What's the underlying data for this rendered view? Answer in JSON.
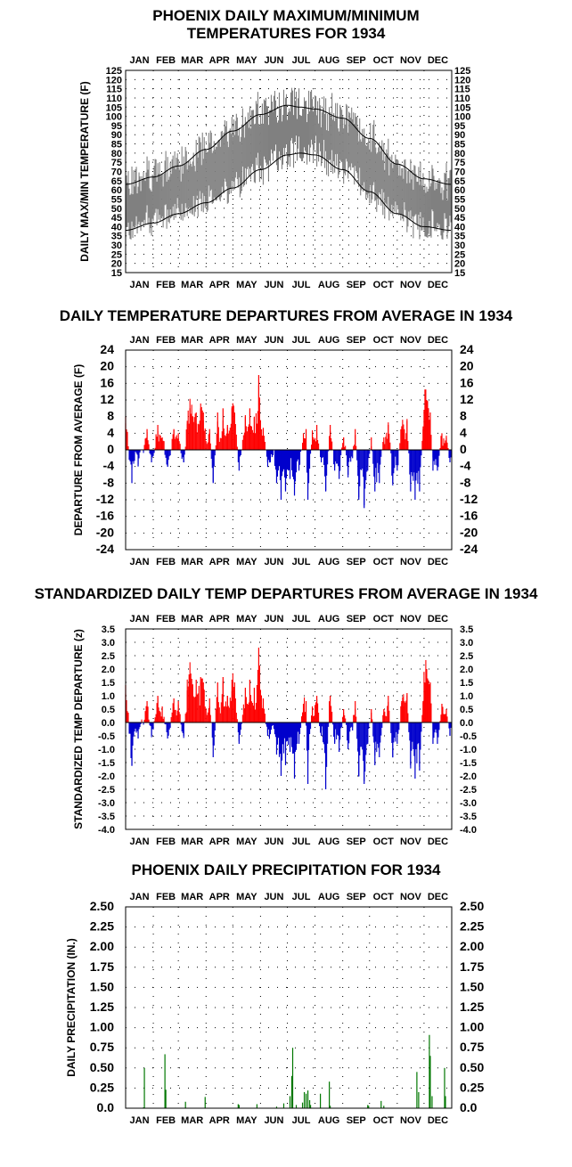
{
  "months": [
    "JAN",
    "FEB",
    "MAR",
    "APR",
    "MAY",
    "JUN",
    "JUL",
    "AUG",
    "SEP",
    "OCT",
    "NOV",
    "DEC"
  ],
  "colors": {
    "positive": "#ff0000",
    "negative": "#0000cc",
    "range": "#808080",
    "precip": "#007700",
    "frame": "#000000"
  },
  "chart_data": [
    {
      "type": "area",
      "title_lines": [
        "PHOENIX DAILY MAXIMUM/MINIMUM",
        "TEMPERATURES FOR 1934"
      ],
      "ylabel": "DAILY MAX/MIN TEMPERATURE (F)",
      "ylim": [
        15,
        125
      ],
      "yticks": [
        "15",
        "20",
        "25",
        "30",
        "35",
        "40",
        "45",
        "50",
        "55",
        "60",
        "65",
        "70",
        "75",
        "80",
        "85",
        "90",
        "95",
        "100",
        "105",
        "110",
        "115",
        "120",
        "125"
      ],
      "grid": "dotted",
      "series": [],
      "normal_high_anchors": {
        "day": [
          1,
          32,
          60,
          91,
          121,
          152,
          182,
          196,
          213,
          244,
          274,
          305,
          335,
          365
        ],
        "value": [
          63,
          67,
          73,
          82,
          92,
          101,
          106,
          105,
          104,
          99,
          88,
          74,
          66,
          63
        ]
      },
      "normal_low_anchors": {
        "day": [
          1,
          32,
          60,
          91,
          121,
          152,
          182,
          196,
          213,
          244,
          274,
          305,
          335,
          365
        ],
        "value": [
          38,
          42,
          47,
          53,
          61,
          71,
          79,
          80,
          79,
          71,
          59,
          47,
          40,
          38
        ]
      }
    },
    {
      "type": "bar",
      "title_lines": [
        "DAILY TEMPERATURE DEPARTURES FROM AVERAGE IN 1934"
      ],
      "ylabel": "DEPARTURE FROM AVERAGE (F)",
      "ylim": [
        -24,
        24
      ],
      "yticks": [
        "-24",
        "-20",
        "-16",
        "-12",
        "-8",
        "-4",
        "0",
        "4",
        "8",
        "12",
        "16",
        "20",
        "24"
      ],
      "grid": "dotted",
      "spikes": {
        "day": [
          1,
          8,
          15,
          25,
          30,
          37,
          42,
          48,
          55,
          60,
          66,
          70,
          73,
          76,
          80,
          85,
          88,
          95,
          99,
          104,
          110,
          115,
          120,
          123,
          128,
          135,
          140,
          145,
          150,
          155,
          160,
          163,
          170,
          175,
          180,
          185,
          190,
          195,
          200,
          203,
          205,
          210,
          215,
          220,
          225,
          230,
          235,
          240,
          245,
          250,
          255,
          258,
          262,
          268,
          272,
          276,
          280,
          285,
          290,
          295,
          300,
          305,
          310,
          312,
          316,
          320,
          325,
          330,
          334,
          336,
          338,
          342,
          345,
          350,
          355,
          360,
          364
        ],
        "value": [
          8,
          -8,
          -4,
          5,
          -3,
          6,
          3,
          -4,
          5,
          4,
          -3,
          7,
          10,
          8,
          9,
          10,
          9,
          5,
          -8,
          9,
          10,
          6,
          10,
          9,
          -5,
          8,
          10,
          8,
          18,
          5,
          -3,
          -3,
          -8,
          -12,
          -10,
          -7,
          -11,
          -5,
          4,
          5,
          -12,
          4,
          6,
          -3,
          -10,
          6,
          -5,
          -7,
          3,
          -6,
          -2,
          5,
          -12,
          -14,
          -5,
          3,
          -10,
          -8,
          3,
          6,
          -8,
          -5,
          5,
          4,
          7,
          -10,
          -12,
          -10,
          5,
          7,
          12,
          9,
          -5,
          -5,
          4,
          3,
          -3
        ]
      }
    },
    {
      "type": "bar",
      "title_lines": [
        "STANDARDIZED DAILY TEMP DEPARTURES FROM AVERAGE IN 1934"
      ],
      "ylabel": "STANDARDIZED TEMP DEPARTURE  (z)",
      "ylim": [
        -4.0,
        3.5
      ],
      "yticks": [
        "-4.0",
        "-3.5",
        "-3.0",
        "-2.5",
        "-2.0",
        "-1.5",
        "-1.0",
        "-0.5",
        "0.0",
        "0.5",
        "1.0",
        "1.5",
        "2.0",
        "2.5",
        "3.0",
        "3.5"
      ],
      "grid": "dotted",
      "spikes": {
        "day": [
          1,
          8,
          15,
          25,
          30,
          37,
          42,
          48,
          55,
          60,
          66,
          70,
          73,
          76,
          80,
          85,
          88,
          95,
          99,
          104,
          110,
          115,
          120,
          123,
          128,
          135,
          140,
          145,
          150,
          155,
          160,
          163,
          170,
          175,
          180,
          185,
          190,
          195,
          200,
          203,
          205,
          210,
          215,
          220,
          225,
          230,
          235,
          240,
          245,
          250,
          255,
          258,
          262,
          268,
          272,
          276,
          280,
          285,
          290,
          295,
          300,
          305,
          310,
          312,
          316,
          320,
          325,
          330,
          334,
          336,
          338,
          342,
          345,
          350,
          355,
          360,
          364
        ],
        "value": [
          1.4,
          -1.6,
          -0.6,
          0.8,
          -0.5,
          1.0,
          0.6,
          -0.6,
          0.9,
          0.8,
          -0.5,
          1.2,
          1.8,
          1.4,
          1.6,
          1.7,
          1.5,
          0.9,
          -1.3,
          1.5,
          1.7,
          1.0,
          1.6,
          1.5,
          -0.8,
          1.3,
          1.6,
          1.3,
          2.8,
          0.9,
          -0.5,
          -0.4,
          -1.2,
          -2.0,
          -1.6,
          -1.1,
          -2.1,
          -0.8,
          0.7,
          0.8,
          -2.3,
          0.6,
          1.0,
          -0.5,
          -2.5,
          1.0,
          -0.8,
          -1.1,
          0.5,
          -1.0,
          -0.3,
          0.8,
          -2.0,
          -2.3,
          -0.8,
          0.5,
          -1.6,
          -1.3,
          0.5,
          1.0,
          -1.3,
          -0.8,
          0.8,
          0.6,
          1.1,
          -1.6,
          -2.1,
          -1.8,
          0.8,
          1.2,
          2.0,
          1.5,
          -0.8,
          -0.8,
          0.7,
          0.5,
          -0.5
        ]
      }
    },
    {
      "type": "bar",
      "title_lines": [
        "PHOENIX DAILY PRECIPITATION FOR 1934"
      ],
      "ylabel": "DAILY PRECIPITATION (IN.)",
      "ylim": [
        0,
        2.5
      ],
      "yticks": [
        "0.0",
        "0.25",
        "0.50",
        "0.75",
        "1.00",
        "1.25",
        "1.50",
        "1.75",
        "2.00",
        "2.25",
        "2.50"
      ],
      "grid": "dotted",
      "x": [
        21,
        22,
        45,
        46,
        68,
        90,
        127,
        128,
        148,
        170,
        178,
        185,
        187,
        188,
        192,
        199,
        201,
        203,
        205,
        207,
        208,
        219,
        229,
        230,
        272,
        273,
        287,
        290,
        327,
        329,
        341,
        342,
        344,
        358,
        359
      ],
      "values": [
        0.01,
        0.5,
        0.67,
        0.23,
        0.08,
        0.14,
        0.05,
        0.04,
        0.05,
        0.02,
        0.06,
        0.15,
        0.4,
        0.75,
        0.04,
        0.07,
        0.2,
        0.18,
        0.22,
        0.1,
        0.04,
        0.18,
        0.33,
        0.03,
        0.04,
        0.03,
        0.09,
        0.03,
        0.45,
        0.2,
        0.91,
        0.65,
        0.15,
        0.5,
        0.15
      ]
    }
  ]
}
